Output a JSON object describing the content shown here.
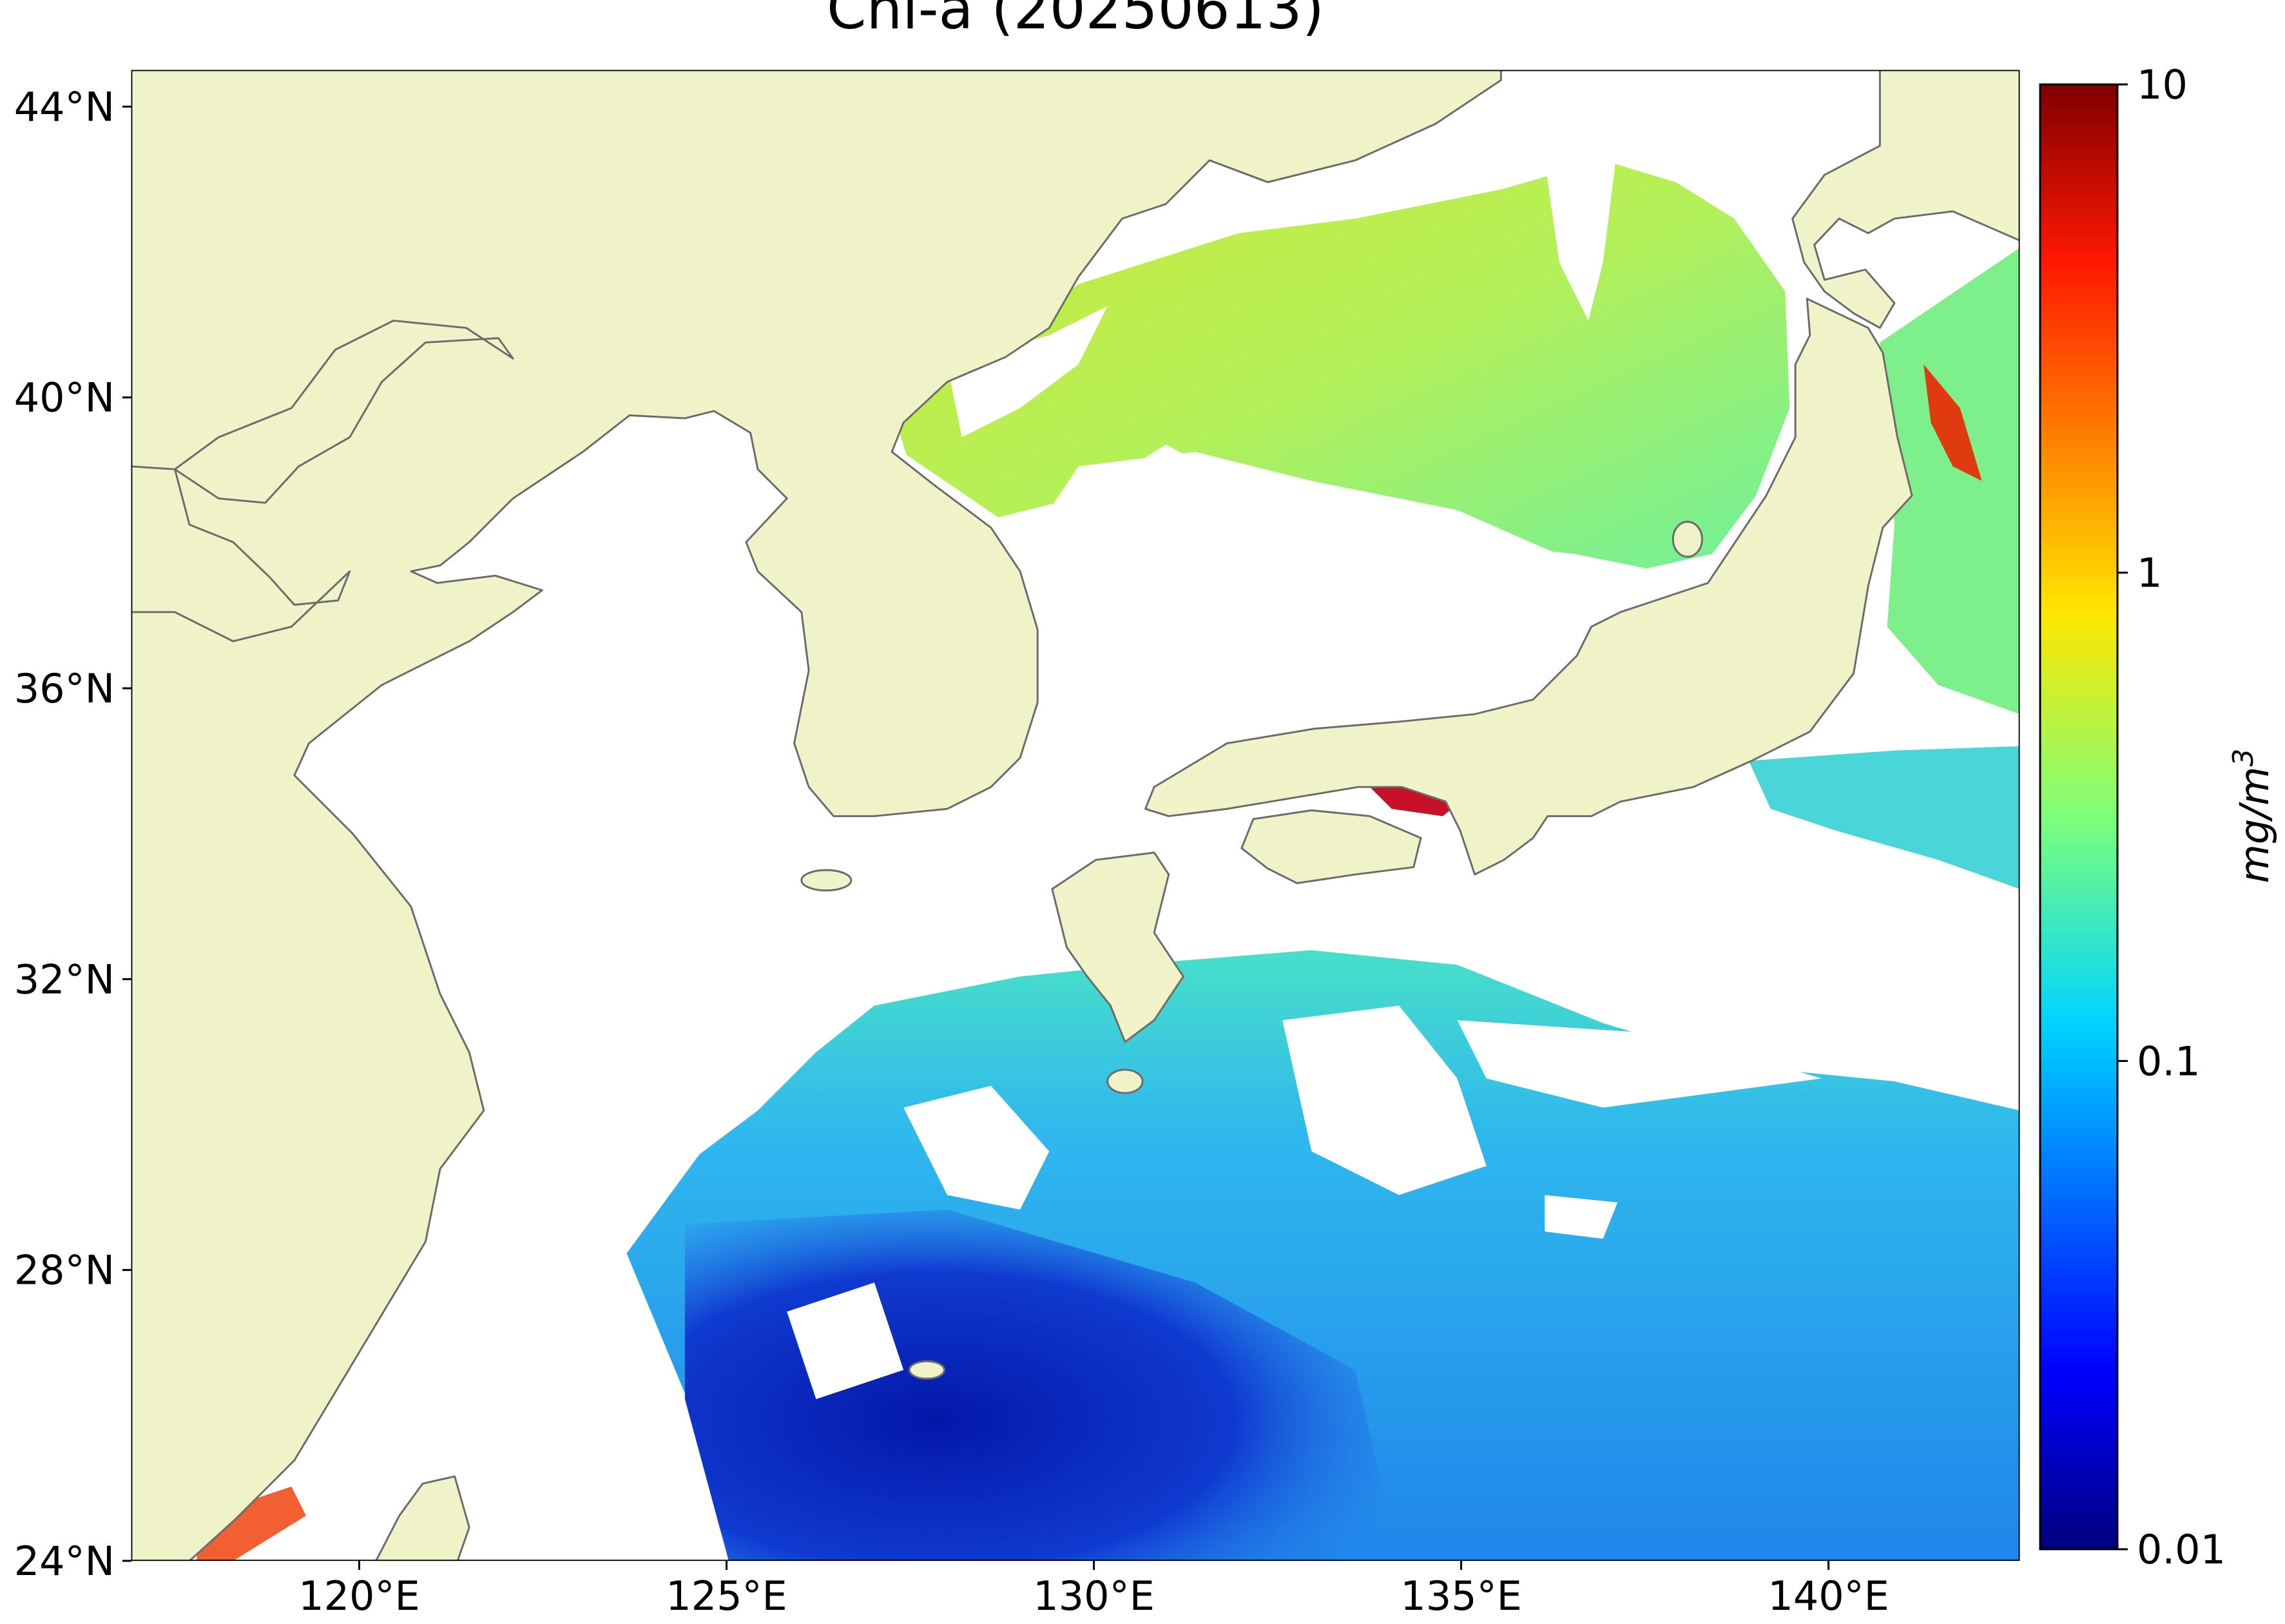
{
  "chart_data": {
    "type": "map",
    "title": "Chl-a (20250613)",
    "xlim": [
      116.9,
      142.6
    ],
    "ylim": [
      24,
      44.5
    ],
    "xticks": [
      {
        "value": 120,
        "label": "120°E"
      },
      {
        "value": 125,
        "label": "125°E"
      },
      {
        "value": 130,
        "label": "130°E"
      },
      {
        "value": 135,
        "label": "135°E"
      },
      {
        "value": 140,
        "label": "140°E"
      }
    ],
    "yticks": [
      {
        "value": 24,
        "label": "24°N"
      },
      {
        "value": 28,
        "label": "28°N"
      },
      {
        "value": 32,
        "label": "32°N"
      },
      {
        "value": 36,
        "label": "36°N"
      },
      {
        "value": 40,
        "label": "40°N"
      },
      {
        "value": 44,
        "label": "44°N"
      }
    ],
    "colorbar": {
      "scale": "log",
      "colormap": "jet",
      "lim": [
        0.01,
        10
      ],
      "ticks": [
        0.01,
        0.1,
        1,
        10
      ],
      "label": {
        "base": "mg/m",
        "exponent": "3"
      }
    }
  }
}
